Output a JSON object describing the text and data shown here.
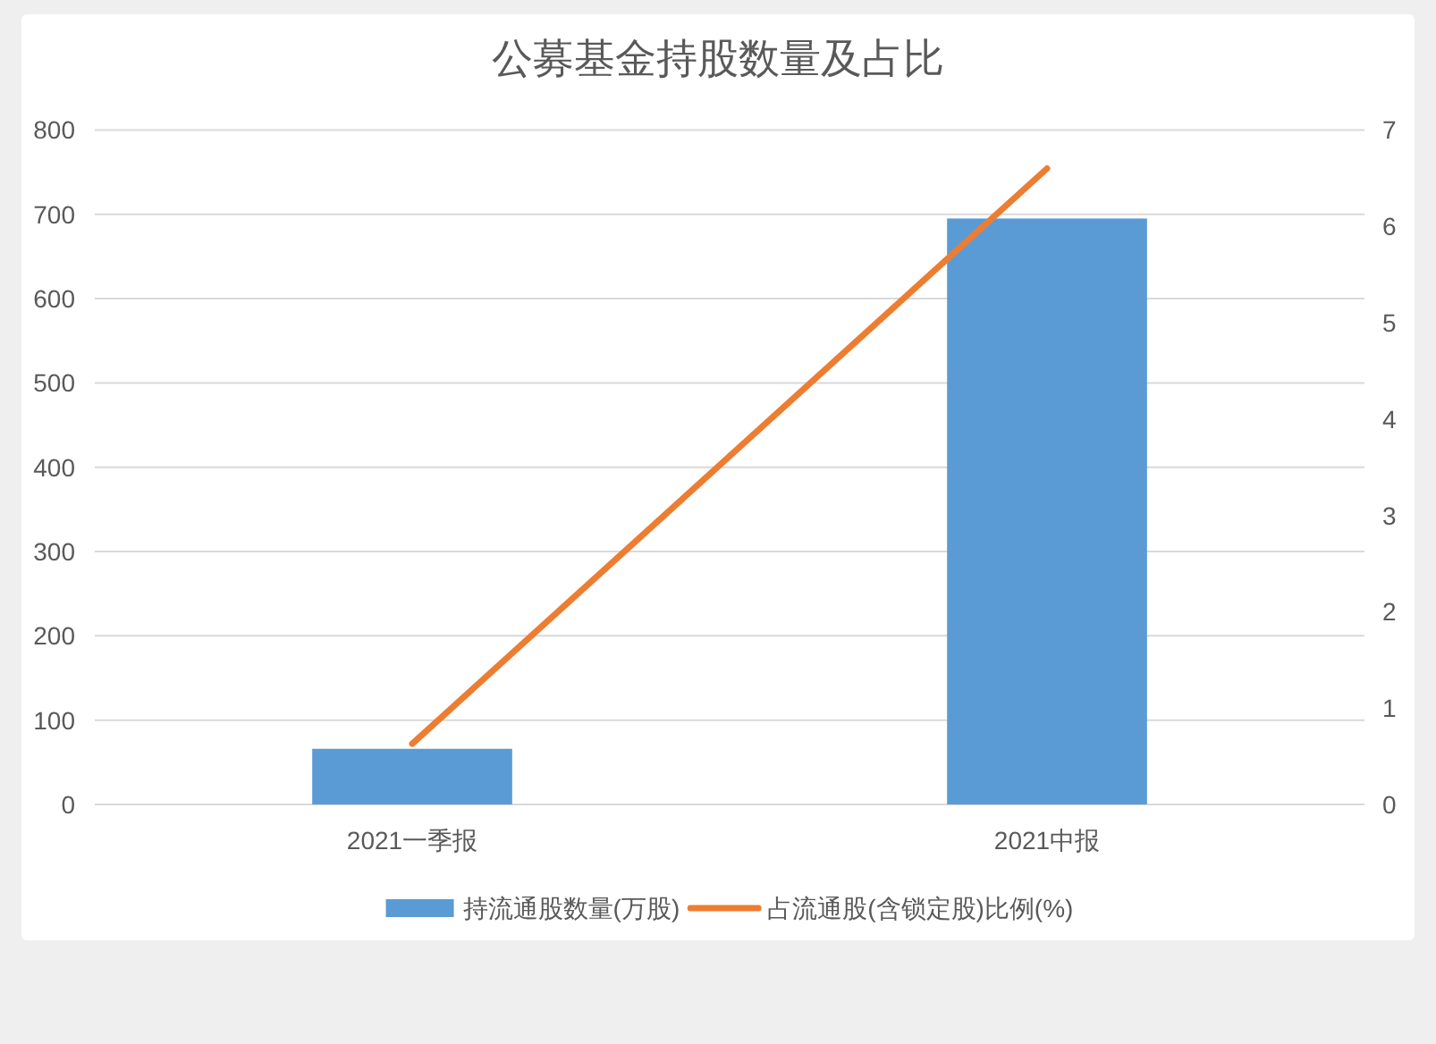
{
  "chart_data": {
    "type": "bar",
    "title": "公募基金持股数量及占比",
    "categories": [
      "2021一季报",
      "2021中报"
    ],
    "series": [
      {
        "name": "持流通股数量(万股)",
        "color": "#5b9bd5",
        "values": [
          66,
          695
        ]
      },
      {
        "name": "占流通股(含锁定股)比例(%)",
        "type": "line",
        "axis": "y2",
        "color": "#ed7d31",
        "values": [
          0.63,
          6.6
        ]
      }
    ],
    "ylim": [
      0,
      800
    ],
    "yticks": [
      0,
      100,
      200,
      300,
      400,
      500,
      600,
      700,
      800
    ],
    "y2lim": [
      0,
      7
    ],
    "y2ticks": [
      0,
      1,
      2,
      3,
      4,
      5,
      6,
      7
    ],
    "grid": "y",
    "legend": "bottom"
  }
}
